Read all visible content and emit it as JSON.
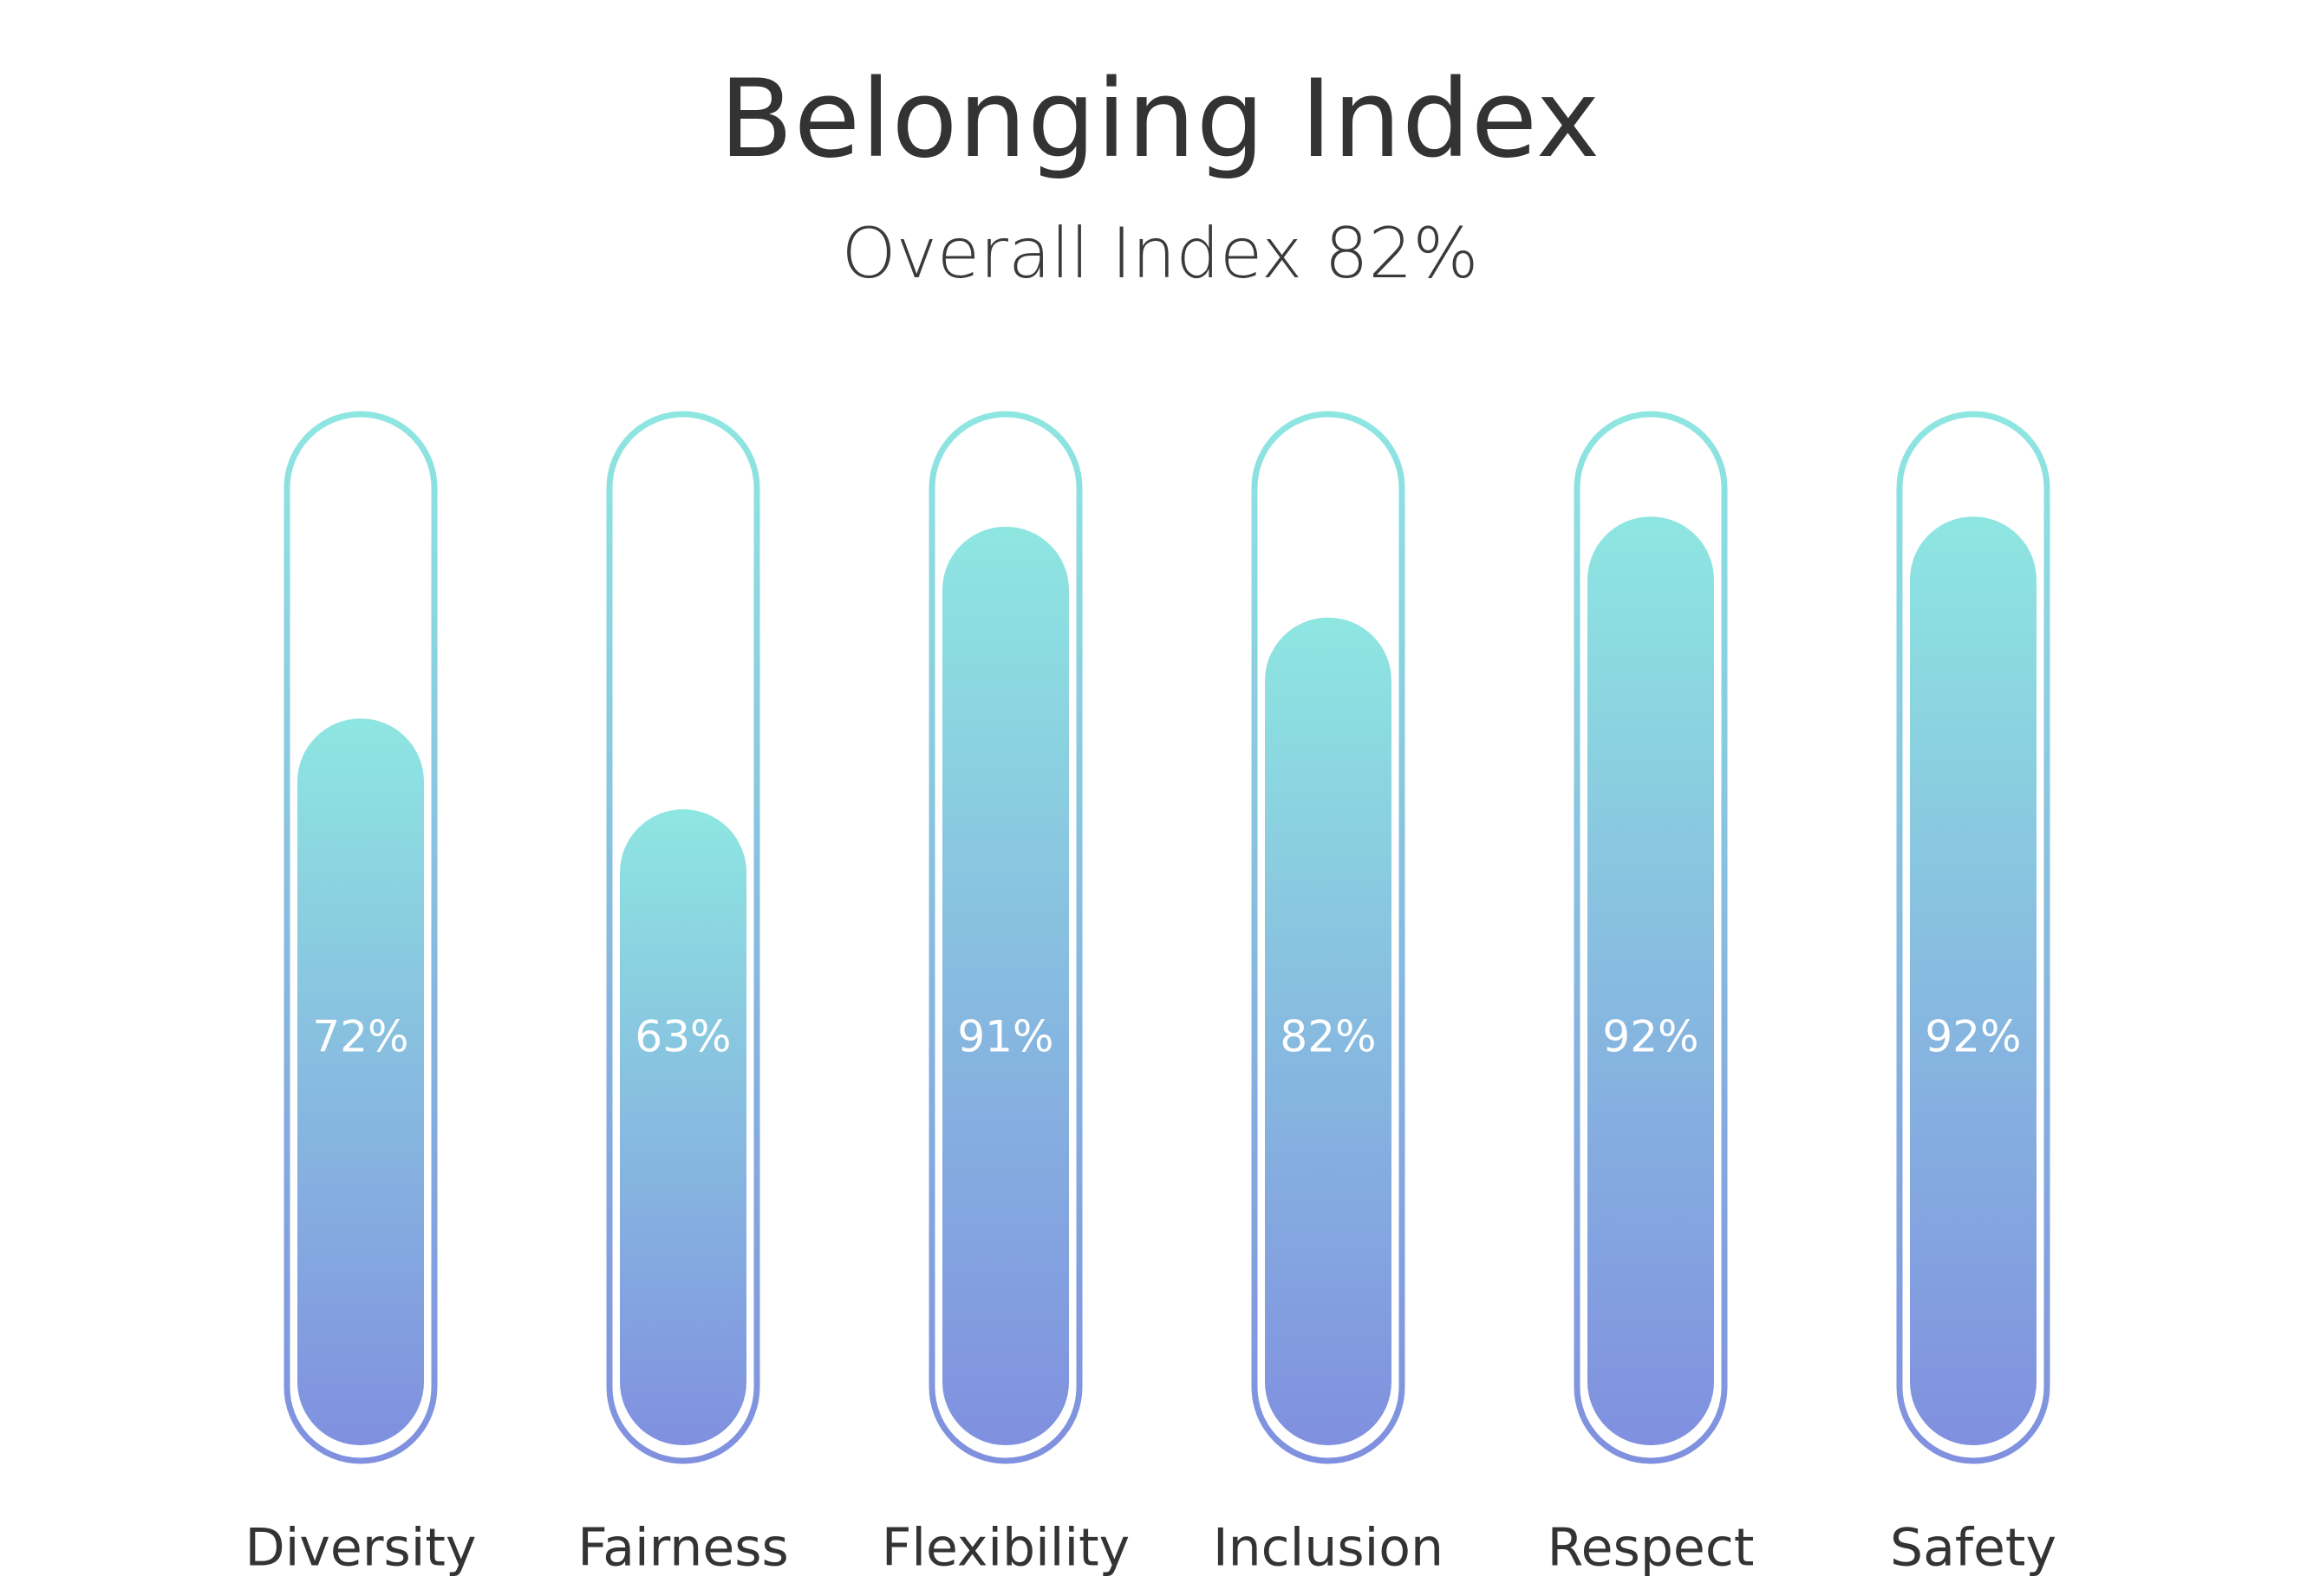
{
  "chart_data": {
    "type": "bar",
    "title": "Belonging Index",
    "subtitle": "Overall Index 82%",
    "categories": [
      "Diversity",
      "Fairness",
      "Flexibility",
      "Inclusion",
      "Respect",
      "Safety"
    ],
    "values": [
      72,
      63,
      91,
      82,
      92,
      92
    ],
    "value_labels": [
      "72%",
      "63%",
      "91%",
      "82%",
      "92%",
      "92%"
    ],
    "ylim": [
      0,
      100
    ],
    "xlabel": "",
    "ylabel": "",
    "grid": false,
    "legend": "none",
    "colors": {
      "fill_top": "#8ee6e1",
      "fill_bottom": "#8090df",
      "outline_top": "#8ee6e1",
      "outline_bottom": "#8090df"
    }
  }
}
